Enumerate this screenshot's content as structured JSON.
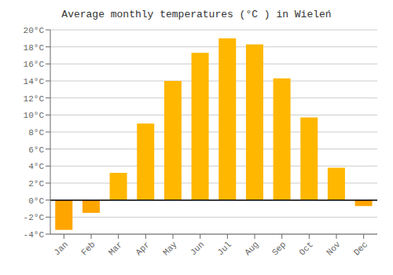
{
  "chart_data": {
    "type": "bar",
    "title": "Average monthly temperatures (°C ) in Wieleń",
    "categories": [
      "Jan",
      "Feb",
      "Mar",
      "Apr",
      "May",
      "Jun",
      "Jul",
      "Aug",
      "Sep",
      "Oct",
      "Nov",
      "Dec"
    ],
    "values": [
      -3.5,
      -1.5,
      3.2,
      9.0,
      14.0,
      17.3,
      19.0,
      18.3,
      14.3,
      9.7,
      3.8,
      -0.7
    ],
    "colors": [
      "#FFA500",
      "#FFA500",
      "#FFB700",
      "#FFB700",
      "#FFB700",
      "#FFB700",
      "#FFB700",
      "#FFB700",
      "#FFB700",
      "#FFB700",
      "#FFB700",
      "#FFA500"
    ],
    "ylim": [
      -4,
      20
    ],
    "yticks": [
      {
        "value": -4,
        "label": "-4°C"
      },
      {
        "value": -2,
        "label": "-2°C"
      },
      {
        "value": 0,
        "label": "0°C"
      },
      {
        "value": 2,
        "label": "2°C"
      },
      {
        "value": 4,
        "label": "4°C"
      },
      {
        "value": 6,
        "label": "6°C"
      },
      {
        "value": 8,
        "label": "8°C"
      },
      {
        "value": 10,
        "label": "10°C"
      },
      {
        "value": 12,
        "label": "12°C"
      },
      {
        "value": 14,
        "label": "14°C"
      },
      {
        "value": 16,
        "label": "16°C"
      },
      {
        "value": 18,
        "label": "18°C"
      },
      {
        "value": 20,
        "label": "20°C"
      }
    ],
    "grid": true
  }
}
